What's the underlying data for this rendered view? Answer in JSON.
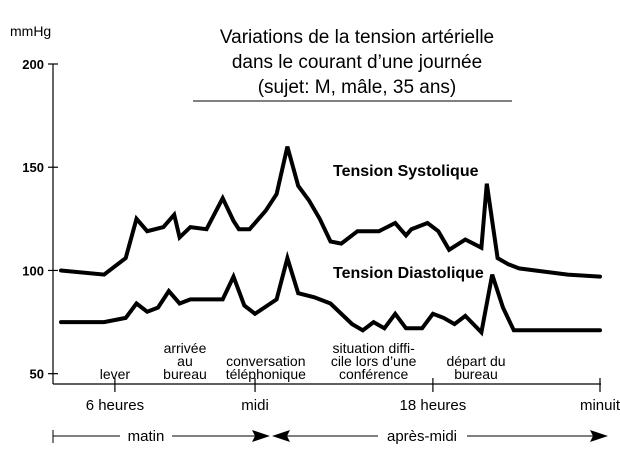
{
  "chart_data": {
    "type": "line",
    "title": [
      "Variations de la tension artérielle",
      "dans le courant d’une journée",
      "(sujet: M, mâle, 35 ans)"
    ],
    "ylabel": "mmHg",
    "ylim": [
      45,
      200
    ],
    "yticks": [
      50,
      100,
      150,
      200
    ],
    "xlim": [
      0,
      100
    ],
    "series": [
      {
        "name": "Tension Systolique",
        "x": [
          0,
          8,
          12,
          14,
          16,
          19,
          21,
          22,
          24,
          27,
          30,
          32,
          33,
          35,
          38,
          40,
          42,
          44,
          46,
          48,
          50,
          52,
          55,
          59,
          62,
          64,
          65,
          68,
          70,
          72,
          75,
          78,
          79,
          81,
          83,
          85,
          88,
          94,
          100
        ],
        "values": [
          100,
          98,
          106,
          125,
          119,
          121,
          127,
          116,
          121,
          120,
          135,
          124,
          120,
          120,
          129,
          137,
          160,
          141,
          134,
          125,
          114,
          113,
          119,
          119,
          123,
          117,
          120,
          123,
          119,
          110,
          115,
          111,
          142,
          106,
          103,
          101,
          100,
          98,
          97
        ],
        "color": "#000000"
      },
      {
        "name": "Tension Diastolique",
        "x": [
          0,
          8,
          12,
          14,
          16,
          18,
          20,
          22,
          24,
          27,
          30,
          32,
          34,
          36,
          40,
          42,
          44,
          47,
          50,
          54,
          56,
          58,
          60,
          62,
          64,
          67,
          69,
          71,
          73,
          75,
          78,
          80,
          82,
          84,
          88,
          94,
          100
        ],
        "values": [
          75,
          75,
          77,
          84,
          80,
          82,
          90,
          84,
          86,
          86,
          86,
          97,
          83,
          79,
          86,
          106,
          89,
          87,
          84,
          74,
          71,
          75,
          72,
          79,
          72,
          72,
          79,
          77,
          74,
          78,
          70,
          98,
          82,
          71,
          71,
          71,
          71
        ],
        "color": "#000000"
      }
    ],
    "time_ticks": [
      {
        "x": 10,
        "label": "6 heures"
      },
      {
        "x": 36,
        "label": "midi"
      },
      {
        "x": 69,
        "label": "18 heures"
      },
      {
        "x": 100,
        "label": "minuit"
      }
    ],
    "events": [
      {
        "x": 10,
        "lines": [
          "lever"
        ]
      },
      {
        "x": 23,
        "lines": [
          "arrivée",
          "au",
          "bureau"
        ]
      },
      {
        "x": 38,
        "lines": [
          "conversation",
          "téléphonique"
        ]
      },
      {
        "x": 58,
        "lines": [
          "situation diffi-",
          "cile lors d’une",
          "conférence"
        ]
      },
      {
        "x": 77,
        "lines": [
          "départ du",
          "bureau"
        ]
      }
    ],
    "periods": [
      {
        "label": "matin"
      },
      {
        "label": "après-midi"
      }
    ],
    "grid": false,
    "legend": "inline labels on curves"
  }
}
